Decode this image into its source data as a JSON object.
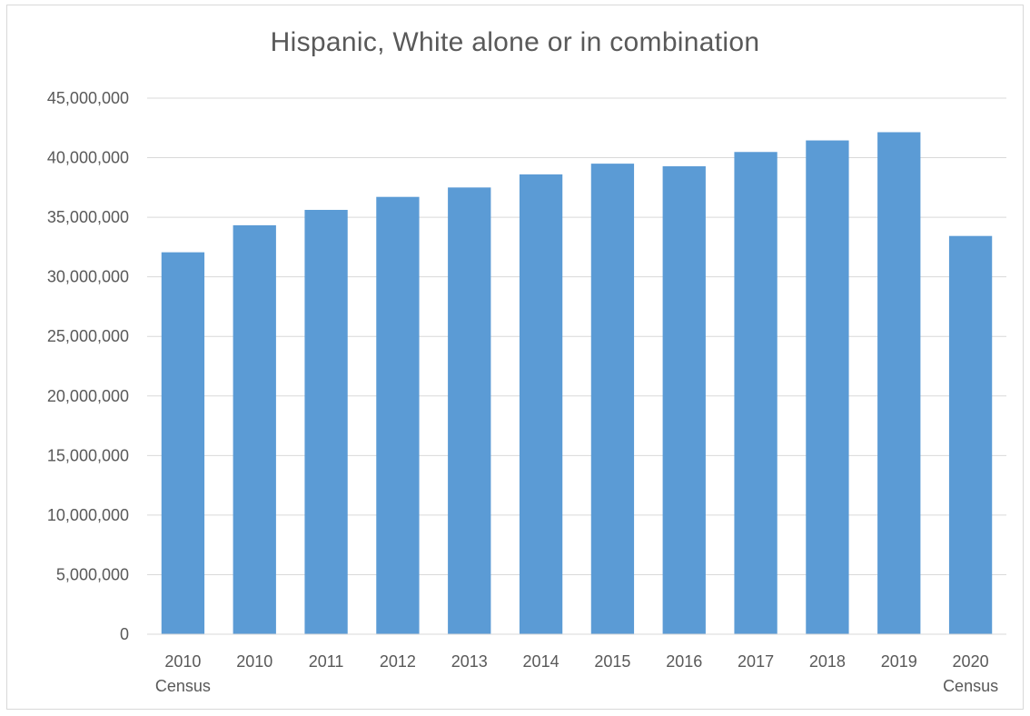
{
  "chart_data": {
    "type": "bar",
    "title": "Hispanic, White alone or in combination",
    "xlabel": "",
    "ylabel": "",
    "categories": [
      [
        "2010",
        "Census"
      ],
      [
        "2010"
      ],
      [
        "2011"
      ],
      [
        "2012"
      ],
      [
        "2013"
      ],
      [
        "2014"
      ],
      [
        "2015"
      ],
      [
        "2016"
      ],
      [
        "2017"
      ],
      [
        "2018"
      ],
      [
        "2019"
      ],
      [
        "2020",
        "Census"
      ]
    ],
    "values": [
      32060000,
      34330000,
      35620000,
      36710000,
      37500000,
      38600000,
      39500000,
      39280000,
      40480000,
      41450000,
      42140000,
      33430000
    ],
    "ylim": [
      0,
      45000000
    ],
    "yticks": [
      0,
      5000000,
      10000000,
      15000000,
      20000000,
      25000000,
      30000000,
      35000000,
      40000000,
      45000000
    ],
    "ytick_labels": [
      "0",
      "5,000,000",
      "10,000,000",
      "15,000,000",
      "20,000,000",
      "25,000,000",
      "30,000,000",
      "35,000,000",
      "40,000,000",
      "45,000,000"
    ],
    "bar_color": "#5b9bd5",
    "grid": true,
    "legend": "none"
  }
}
